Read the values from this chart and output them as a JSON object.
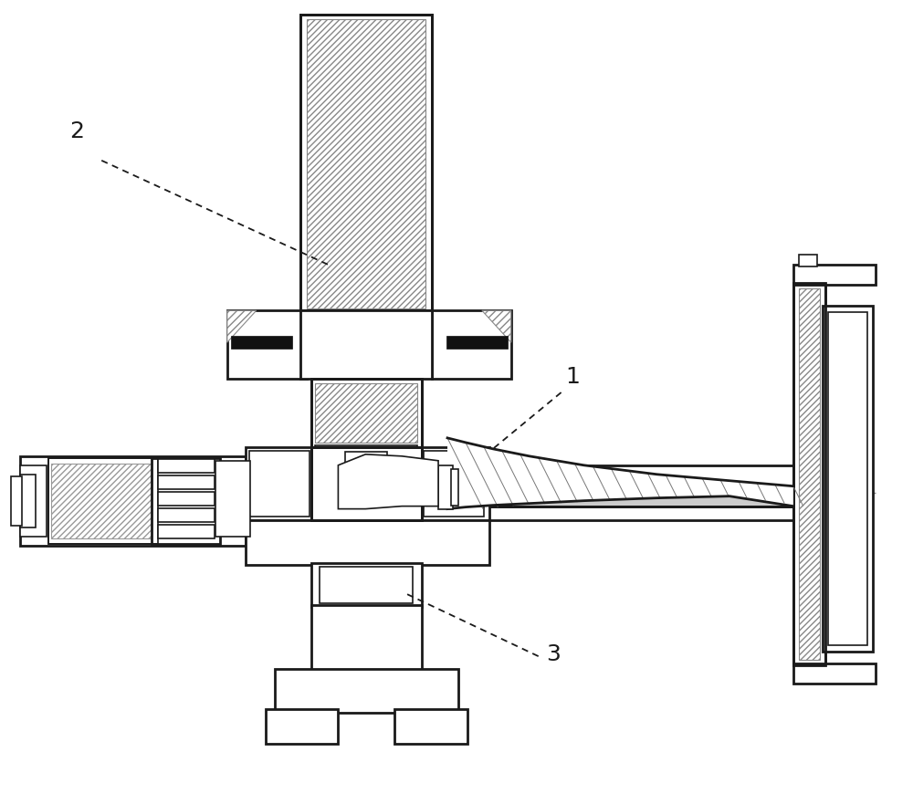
{
  "bg": "#ffffff",
  "lc": "#1a1a1a",
  "fig_w": 10.0,
  "fig_h": 8.81,
  "dpi": 100,
  "label_1": "1",
  "label_2": "2",
  "label_3": "3",
  "lfs": 18
}
